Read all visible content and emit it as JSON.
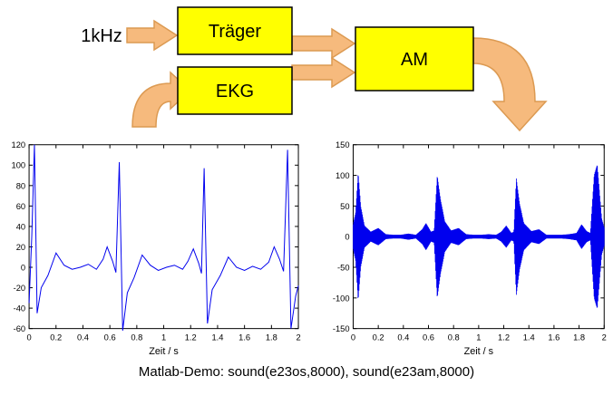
{
  "diagram": {
    "input_label": "1kHz",
    "blocks": {
      "traeger": "Träger",
      "ekg": "EKG",
      "am": "AM"
    },
    "colors": {
      "box_fill": "#FFFF00",
      "box_border": "#000000",
      "arrow_fill": "#F6BA7D",
      "arrow_border": "#DC9A52"
    }
  },
  "caption": "Matlab-Demo:  sound(e23os,8000), sound(e23am,8000)",
  "chart_data": [
    {
      "type": "line",
      "name": "EKG",
      "title": "",
      "xlabel": "Zeit / s",
      "ylabel": "",
      "xlim": [
        0,
        2
      ],
      "ylim": [
        -60,
        120
      ],
      "xticks": [
        0,
        0.2,
        0.4,
        0.6,
        0.8,
        1,
        1.2,
        1.4,
        1.6,
        1.8,
        2
      ],
      "yticks": [
        -60,
        -40,
        -20,
        0,
        20,
        40,
        60,
        80,
        100,
        120
      ],
      "grid": false,
      "legend": "none",
      "line_color": "#0000EE",
      "points": [
        [
          0,
          -35
        ],
        [
          0.02,
          30
        ],
        [
          0.04,
          120
        ],
        [
          0.06,
          -45
        ],
        [
          0.09,
          -20
        ],
        [
          0.14,
          -8
        ],
        [
          0.2,
          14
        ],
        [
          0.26,
          2
        ],
        [
          0.32,
          -2
        ],
        [
          0.38,
          0
        ],
        [
          0.44,
          3
        ],
        [
          0.5,
          -2
        ],
        [
          0.55,
          8
        ],
        [
          0.58,
          20
        ],
        [
          0.62,
          6
        ],
        [
          0.645,
          -5
        ],
        [
          0.67,
          103
        ],
        [
          0.695,
          -62
        ],
        [
          0.73,
          -25
        ],
        [
          0.78,
          -10
        ],
        [
          0.84,
          12
        ],
        [
          0.9,
          2
        ],
        [
          0.96,
          -3
        ],
        [
          1.02,
          0
        ],
        [
          1.08,
          2
        ],
        [
          1.14,
          -2
        ],
        [
          1.18,
          6
        ],
        [
          1.22,
          18
        ],
        [
          1.26,
          4
        ],
        [
          1.28,
          -6
        ],
        [
          1.3,
          97
        ],
        [
          1.325,
          -55
        ],
        [
          1.36,
          -22
        ],
        [
          1.42,
          -8
        ],
        [
          1.48,
          10
        ],
        [
          1.54,
          0
        ],
        [
          1.6,
          -3
        ],
        [
          1.66,
          1
        ],
        [
          1.72,
          -2
        ],
        [
          1.78,
          5
        ],
        [
          1.82,
          20
        ],
        [
          1.86,
          8
        ],
        [
          1.89,
          -4
        ],
        [
          1.92,
          115
        ],
        [
          1.945,
          -60
        ],
        [
          1.98,
          -28
        ],
        [
          2,
          -18
        ]
      ]
    },
    {
      "type": "line",
      "name": "AM-Signal",
      "render": "amplitude-envelope",
      "title": "",
      "xlabel": "Zeit / s",
      "ylabel": "",
      "xlim": [
        0,
        2
      ],
      "ylim": [
        -150,
        150
      ],
      "xticks": [
        0,
        0.2,
        0.4,
        0.6,
        0.8,
        1,
        1.2,
        1.4,
        1.6,
        1.8,
        2
      ],
      "yticks": [
        -150,
        -100,
        -50,
        0,
        50,
        100,
        150
      ],
      "grid": false,
      "legend": "none",
      "line_color": "#0000EE",
      "carrier_hz": 1000,
      "envelope": [
        [
          0,
          20
        ],
        [
          0.02,
          40
        ],
        [
          0.04,
          105
        ],
        [
          0.06,
          50
        ],
        [
          0.09,
          18
        ],
        [
          0.14,
          8
        ],
        [
          0.2,
          14
        ],
        [
          0.26,
          4
        ],
        [
          0.32,
          3
        ],
        [
          0.38,
          3
        ],
        [
          0.44,
          5
        ],
        [
          0.5,
          3
        ],
        [
          0.55,
          12
        ],
        [
          0.58,
          22
        ],
        [
          0.62,
          8
        ],
        [
          0.645,
          10
        ],
        [
          0.67,
          100
        ],
        [
          0.695,
          62
        ],
        [
          0.73,
          25
        ],
        [
          0.78,
          10
        ],
        [
          0.84,
          14
        ],
        [
          0.9,
          4
        ],
        [
          0.96,
          3
        ],
        [
          1.02,
          3
        ],
        [
          1.08,
          4
        ],
        [
          1.14,
          3
        ],
        [
          1.18,
          8
        ],
        [
          1.22,
          18
        ],
        [
          1.26,
          6
        ],
        [
          1.28,
          8
        ],
        [
          1.3,
          95
        ],
        [
          1.325,
          55
        ],
        [
          1.36,
          22
        ],
        [
          1.42,
          9
        ],
        [
          1.48,
          12
        ],
        [
          1.54,
          3
        ],
        [
          1.6,
          3
        ],
        [
          1.66,
          3
        ],
        [
          1.72,
          4
        ],
        [
          1.78,
          6
        ],
        [
          1.82,
          20
        ],
        [
          1.86,
          9
        ],
        [
          1.89,
          6
        ],
        [
          1.92,
          100
        ],
        [
          1.945,
          118
        ],
        [
          1.98,
          30
        ],
        [
          2,
          15
        ]
      ]
    }
  ]
}
